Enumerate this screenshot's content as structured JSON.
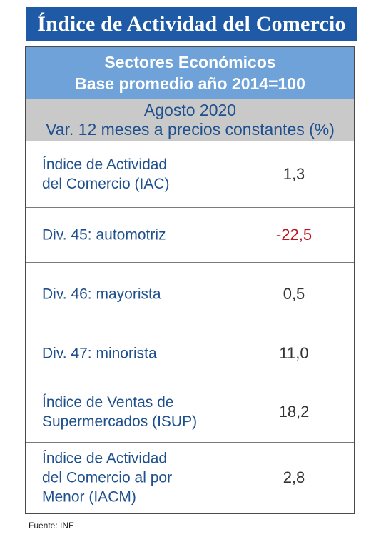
{
  "title": "Índice de Actividad del Comercio",
  "header": {
    "line1": "Sectores Económicos",
    "line2": "Base promedio año 2014=100"
  },
  "subheader": {
    "line1": "Agosto 2020",
    "line2": "Var. 12 meses a precios constantes (%)"
  },
  "rows": [
    {
      "label": "Índice de Actividad\ndel Comercio (IAC)",
      "value": "1,3"
    },
    {
      "label": "Div. 45: automotriz",
      "value": "-22,5"
    },
    {
      "label": "Div. 46: mayorista",
      "value": "0,5"
    },
    {
      "label": "Div. 47: minorista",
      "value": "11,0"
    },
    {
      "label": "Índice de Ventas de\nSupermercados (ISUP)",
      "value": "18,2"
    },
    {
      "label": "Índice de Actividad\ndel Comercio al por\nMenor (IACM)",
      "value": "2,8"
    }
  ],
  "source": "Fuente: INE",
  "colors": {
    "title_bg": "#1f5aa6",
    "header_bg": "#6fa2d8",
    "subheader_bg": "#c9c9c9",
    "label_text": "#1e4f8e",
    "negative_value": "#c0141c"
  }
}
